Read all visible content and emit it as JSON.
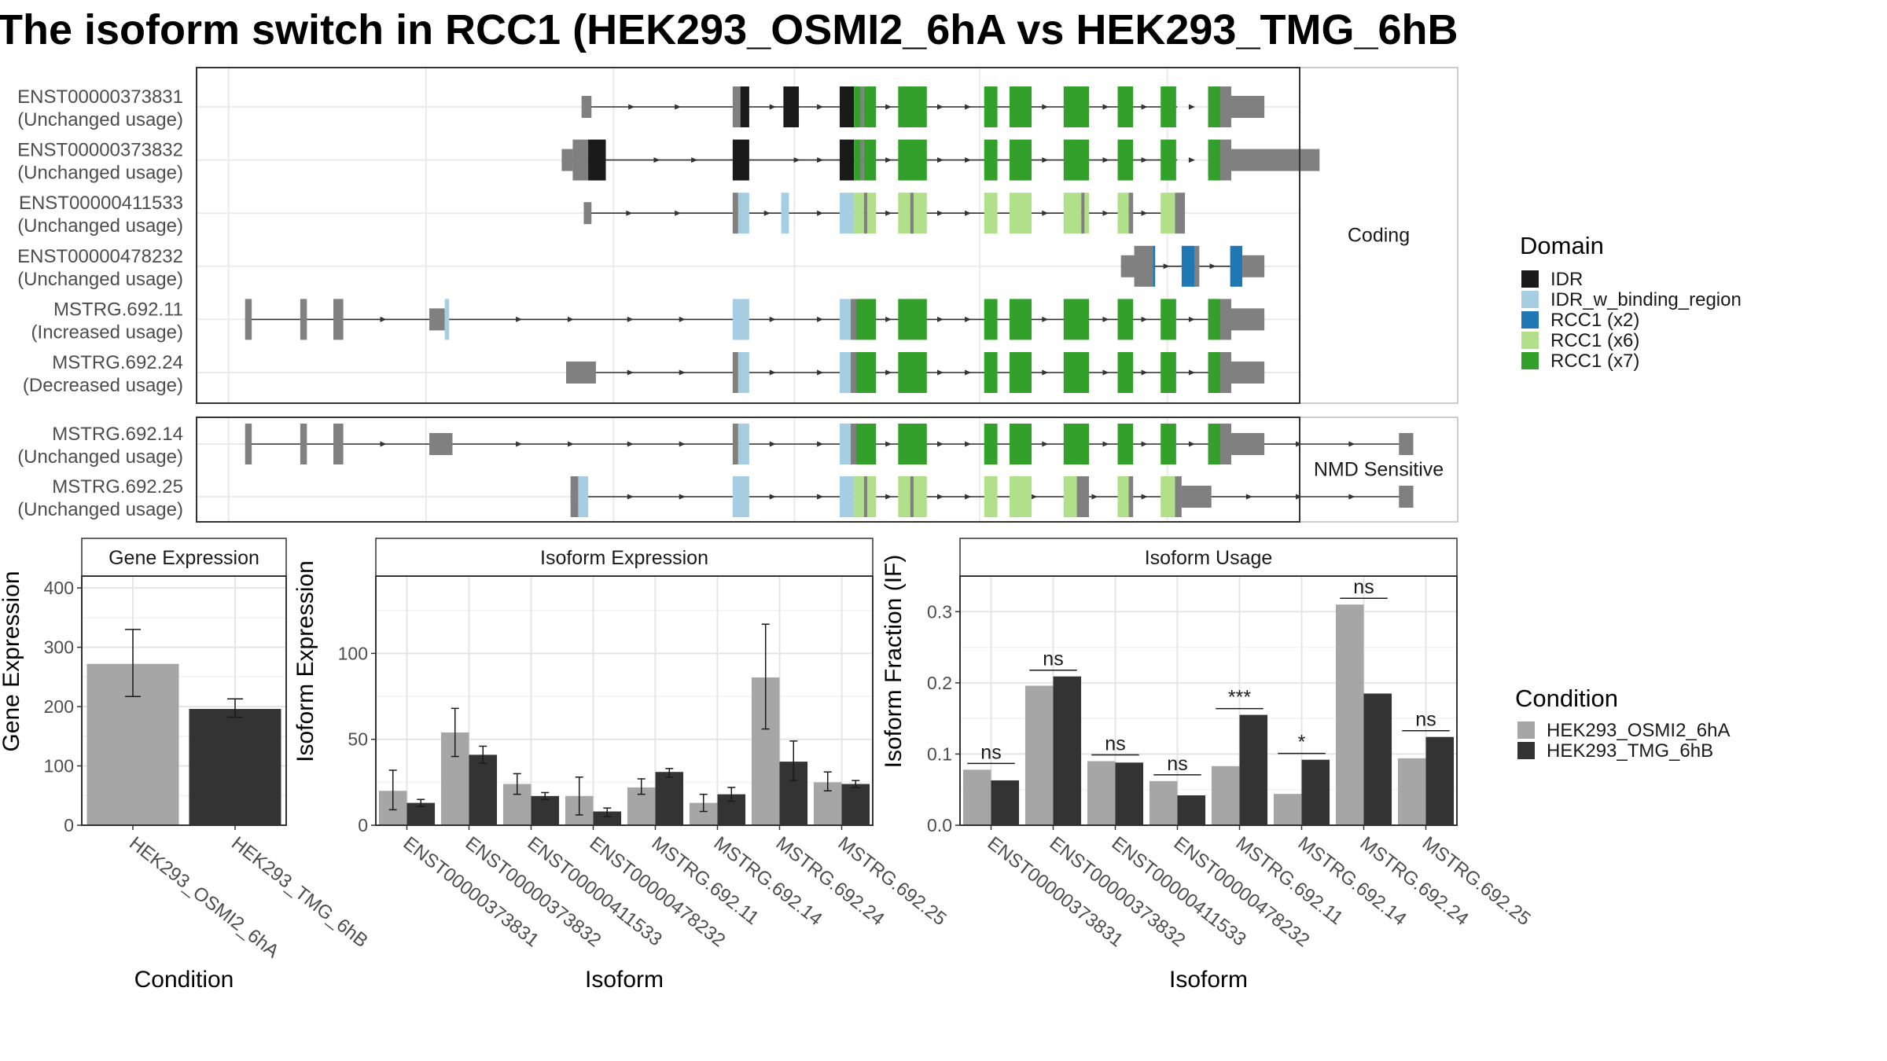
{
  "title": "The isoform switch in RCC1 (HEK293_OSMI2_6hA vs HEK293_TMG_6hB",
  "domain_colors": {
    "IDR": "#1a1a1a",
    "IDR_w_binding_region": "#a6cee3",
    "RCC1 (x2)": "#1f78b4",
    "RCC1 (x6)": "#b2df8a",
    "RCC1 (x7)": "#33a02c",
    "exon": "#808080"
  },
  "condition_colors": {
    "HEK293_OSMI2_6hA": "#a6a6a6",
    "HEK293_TMG_6hB": "#333333"
  },
  "facets": [
    "Coding",
    "NMD Sensitive"
  ],
  "domain_legend": {
    "title": "Domain",
    "items": [
      "IDR",
      "IDR_w_binding_region",
      "RCC1 (x2)",
      "RCC1 (x6)",
      "RCC1 (x7)"
    ]
  },
  "condition_legend": {
    "title": "Condition",
    "items": [
      "HEK293_OSMI2_6hA",
      "HEK293_TMG_6hB"
    ]
  },
  "chart_data": [
    {
      "type": "bar",
      "panel": "Gene Expression",
      "xlabel": "Condition",
      "ylabel": "Gene Expression",
      "ylim": [
        0,
        420
      ],
      "yticks": [
        0,
        100,
        200,
        300,
        400
      ],
      "grid": true,
      "categories": [
        "HEK293_OSMI2_6hA",
        "HEK293_TMG_6hB"
      ],
      "values": [
        272,
        196
      ],
      "err_low": [
        217,
        182
      ],
      "err_high": [
        330,
        213
      ]
    },
    {
      "type": "bar",
      "panel": "Isoform Expression",
      "xlabel": "Isoform",
      "ylabel": "Isoform Expression",
      "ylim": [
        0,
        145
      ],
      "yticks": [
        0,
        50,
        100
      ],
      "grid": true,
      "categories": [
        "ENST00000373831",
        "ENST00000373832",
        "ENST00000411533",
        "ENST00000478232",
        "MSTRG.692.11",
        "MSTRG.692.14",
        "MSTRG.692.24",
        "MSTRG.692.25"
      ],
      "series": [
        {
          "name": "HEK293_OSMI2_6hA",
          "values": [
            20,
            54,
            24,
            17,
            22,
            13,
            86,
            25
          ],
          "err_low": [
            9,
            40,
            18,
            6,
            18,
            8,
            56,
            20
          ],
          "err_high": [
            32,
            68,
            30,
            28,
            27,
            18,
            117,
            31
          ]
        },
        {
          "name": "HEK293_TMG_6hB",
          "values": [
            13,
            41,
            17,
            8,
            31,
            18,
            37,
            24
          ],
          "err_low": [
            11,
            36,
            15,
            5,
            28,
            14,
            26,
            22
          ],
          "err_high": [
            15,
            46,
            19,
            10,
            33,
            22,
            49,
            26
          ]
        }
      ]
    },
    {
      "type": "bar",
      "panel": "Isoform Usage",
      "xlabel": "Isoform",
      "ylabel": "Isoform Fraction (IF)",
      "ylim": [
        0,
        0.35
      ],
      "yticks": [
        0.0,
        0.1,
        0.2,
        0.3
      ],
      "grid": true,
      "categories": [
        "ENST00000373831",
        "ENST00000373832",
        "ENST00000411533",
        "ENST00000478232",
        "MSTRG.692.11",
        "MSTRG.692.14",
        "MSTRG.692.24",
        "MSTRG.692.25"
      ],
      "series": [
        {
          "name": "HEK293_OSMI2_6hA",
          "values": [
            0.078,
            0.196,
            0.09,
            0.062,
            0.083,
            0.044,
            0.31,
            0.094
          ]
        },
        {
          "name": "HEK293_TMG_6hB",
          "values": [
            0.063,
            0.209,
            0.088,
            0.042,
            0.155,
            0.092,
            0.185,
            0.124
          ]
        }
      ],
      "significance": [
        "ns",
        "ns",
        "ns",
        "ns",
        "***",
        "*",
        "ns",
        "ns"
      ]
    }
  ],
  "transcripts": [
    {
      "id": "ENST00000373831",
      "usage": "(Unchanged usage)",
      "group": 0,
      "line": [
        0.349,
        0.889
      ],
      "segs": [
        [
          0.349,
          0.358,
          "exon",
          "thin"
        ],
        [
          0.486,
          0.493,
          "exon",
          "full"
        ],
        [
          0.493,
          0.501,
          "IDR",
          "full"
        ],
        [
          0.532,
          0.546,
          "IDR",
          "full"
        ],
        [
          0.583,
          0.596,
          "IDR",
          "full"
        ],
        [
          0.596,
          0.602,
          "RCC1 (x7)",
          "full"
        ],
        [
          0.602,
          0.605,
          "exon",
          "full"
        ],
        [
          0.605,
          0.616,
          "RCC1 (x7)",
          "full"
        ],
        [
          0.636,
          0.662,
          "RCC1 (x7)",
          "full"
        ],
        [
          0.714,
          0.726,
          "RCC1 (x7)",
          "full"
        ],
        [
          0.737,
          0.757,
          "RCC1 (x7)",
          "full"
        ],
        [
          0.786,
          0.809,
          "RCC1 (x7)",
          "full"
        ],
        [
          0.835,
          0.849,
          "RCC1 (x7)",
          "full"
        ],
        [
          0.874,
          0.888,
          "RCC1 (x7)",
          "full"
        ],
        [
          0.917,
          0.928,
          "RCC1 (x7)",
          "full"
        ],
        [
          0.928,
          0.938,
          "exon",
          "full"
        ],
        [
          0.938,
          0.968,
          "exon",
          "thin"
        ]
      ],
      "arrows": [
        0.395,
        0.437,
        0.523,
        0.566,
        0.628,
        0.675,
        0.7,
        0.77,
        0.825,
        0.86,
        0.903
      ]
    },
    {
      "id": "ENST00000373832",
      "usage": "(Unchanged usage)",
      "group": 0,
      "line": [
        0.331,
        0.889
      ],
      "segs": [
        [
          0.331,
          0.341,
          "exon",
          "thin"
        ],
        [
          0.341,
          0.355,
          "exon",
          "full"
        ],
        [
          0.355,
          0.371,
          "IDR",
          "full"
        ],
        [
          0.486,
          0.501,
          "IDR",
          "full"
        ],
        [
          0.583,
          0.596,
          "IDR",
          "full"
        ],
        [
          0.596,
          0.602,
          "RCC1 (x7)",
          "full"
        ],
        [
          0.602,
          0.605,
          "exon",
          "full"
        ],
        [
          0.605,
          0.616,
          "RCC1 (x7)",
          "full"
        ],
        [
          0.636,
          0.662,
          "RCC1 (x7)",
          "full"
        ],
        [
          0.714,
          0.726,
          "RCC1 (x7)",
          "full"
        ],
        [
          0.737,
          0.757,
          "RCC1 (x7)",
          "full"
        ],
        [
          0.786,
          0.809,
          "RCC1 (x7)",
          "full"
        ],
        [
          0.835,
          0.849,
          "RCC1 (x7)",
          "full"
        ],
        [
          0.874,
          0.888,
          "RCC1 (x7)",
          "full"
        ],
        [
          0.917,
          0.928,
          "RCC1 (x7)",
          "full"
        ],
        [
          0.928,
          0.938,
          "exon",
          "full"
        ],
        [
          0.938,
          1.018,
          "exon",
          "thin"
        ]
      ],
      "arrows": [
        0.418,
        0.452,
        0.545,
        0.566,
        0.628,
        0.675,
        0.7,
        0.77,
        0.825,
        0.86,
        0.903
      ]
    },
    {
      "id": "ENST00000411533",
      "usage": "(Unchanged usage)",
      "group": 0,
      "line": [
        0.351,
        0.896
      ],
      "segs": [
        [
          0.351,
          0.358,
          "exon",
          "thin"
        ],
        [
          0.486,
          0.491,
          "exon",
          "full"
        ],
        [
          0.491,
          0.501,
          "IDR_w_binding_region",
          "full"
        ],
        [
          0.53,
          0.537,
          "IDR_w_binding_region",
          "full"
        ],
        [
          0.583,
          0.596,
          "IDR_w_binding_region",
          "full"
        ],
        [
          0.596,
          0.605,
          "RCC1 (x6)",
          "full"
        ],
        [
          0.605,
          0.608,
          "exon",
          "full"
        ],
        [
          0.608,
          0.616,
          "RCC1 (x6)",
          "full"
        ],
        [
          0.636,
          0.647,
          "RCC1 (x6)",
          "full"
        ],
        [
          0.647,
          0.65,
          "exon",
          "full"
        ],
        [
          0.65,
          0.662,
          "RCC1 (x6)",
          "full"
        ],
        [
          0.714,
          0.726,
          "RCC1 (x6)",
          "full"
        ],
        [
          0.737,
          0.757,
          "RCC1 (x6)",
          "full"
        ],
        [
          0.786,
          0.802,
          "RCC1 (x6)",
          "full"
        ],
        [
          0.802,
          0.805,
          "exon",
          "full"
        ],
        [
          0.805,
          0.809,
          "RCC1 (x6)",
          "full"
        ],
        [
          0.835,
          0.845,
          "RCC1 (x6)",
          "full"
        ],
        [
          0.845,
          0.849,
          "exon",
          "full"
        ],
        [
          0.874,
          0.887,
          "RCC1 (x6)",
          "full"
        ],
        [
          0.887,
          0.896,
          "exon",
          "full"
        ]
      ],
      "arrows": [
        0.393,
        0.437,
        0.518,
        0.566,
        0.628,
        0.675,
        0.7,
        0.77,
        0.825,
        0.86
      ]
    },
    {
      "id": "ENST00000478232",
      "usage": "(Unchanged usage)",
      "group": 0,
      "line": [
        0.838,
        0.968
      ],
      "segs": [
        [
          0.838,
          0.85,
          "exon",
          "thin"
        ],
        [
          0.85,
          0.867,
          "exon",
          "full"
        ],
        [
          0.867,
          0.869,
          "RCC1 (x2)",
          "full"
        ],
        [
          0.893,
          0.905,
          "RCC1 (x2)",
          "full"
        ],
        [
          0.905,
          0.909,
          "exon",
          "full"
        ],
        [
          0.937,
          0.948,
          "RCC1 (x2)",
          "full"
        ],
        [
          0.948,
          0.968,
          "exon",
          "thin"
        ]
      ],
      "arrows": [
        0.88,
        0.922
      ]
    },
    {
      "id": "MSTRG.692.11",
      "usage": "(Increased usage)",
      "group": 0,
      "line": [
        0.044,
        0.968
      ],
      "segs": [
        [
          0.044,
          0.05,
          "exon",
          "full"
        ],
        [
          0.094,
          0.1,
          "exon",
          "full"
        ],
        [
          0.124,
          0.133,
          "exon",
          "full"
        ],
        [
          0.211,
          0.225,
          "exon",
          "thin"
        ],
        [
          0.225,
          0.229,
          "IDR_w_binding_region",
          "full"
        ],
        [
          0.486,
          0.501,
          "IDR_w_binding_region",
          "full"
        ],
        [
          0.583,
          0.593,
          "IDR_w_binding_region",
          "full"
        ],
        [
          0.593,
          0.598,
          "exon",
          "full"
        ],
        [
          0.598,
          0.616,
          "RCC1 (x7)",
          "full"
        ],
        [
          0.636,
          0.662,
          "RCC1 (x7)",
          "full"
        ],
        [
          0.714,
          0.726,
          "RCC1 (x7)",
          "full"
        ],
        [
          0.737,
          0.757,
          "RCC1 (x7)",
          "full"
        ],
        [
          0.786,
          0.809,
          "RCC1 (x7)",
          "full"
        ],
        [
          0.835,
          0.849,
          "RCC1 (x7)",
          "full"
        ],
        [
          0.874,
          0.888,
          "RCC1 (x7)",
          "full"
        ],
        [
          0.917,
          0.928,
          "RCC1 (x7)",
          "full"
        ],
        [
          0.928,
          0.938,
          "exon",
          "full"
        ],
        [
          0.938,
          0.968,
          "exon",
          "thin"
        ]
      ],
      "arrows": [
        0.17,
        0.293,
        0.34,
        0.394,
        0.441,
        0.523,
        0.566,
        0.628,
        0.675,
        0.7,
        0.77,
        0.825,
        0.86,
        0.903
      ]
    },
    {
      "id": "MSTRG.692.24",
      "usage": "(Decreased usage)",
      "group": 0,
      "line": [
        0.335,
        0.968
      ],
      "segs": [
        [
          0.335,
          0.362,
          "exon",
          "thin"
        ],
        [
          0.486,
          0.491,
          "exon",
          "full"
        ],
        [
          0.491,
          0.501,
          "IDR_w_binding_region",
          "full"
        ],
        [
          0.583,
          0.593,
          "IDR_w_binding_region",
          "full"
        ],
        [
          0.593,
          0.598,
          "exon",
          "full"
        ],
        [
          0.598,
          0.616,
          "RCC1 (x7)",
          "full"
        ],
        [
          0.636,
          0.662,
          "RCC1 (x7)",
          "full"
        ],
        [
          0.714,
          0.726,
          "RCC1 (x7)",
          "full"
        ],
        [
          0.737,
          0.757,
          "RCC1 (x7)",
          "full"
        ],
        [
          0.786,
          0.809,
          "RCC1 (x7)",
          "full"
        ],
        [
          0.835,
          0.849,
          "RCC1 (x7)",
          "full"
        ],
        [
          0.874,
          0.888,
          "RCC1 (x7)",
          "full"
        ],
        [
          0.917,
          0.928,
          "RCC1 (x7)",
          "full"
        ],
        [
          0.928,
          0.938,
          "exon",
          "full"
        ],
        [
          0.938,
          0.968,
          "exon",
          "thin"
        ]
      ],
      "arrows": [
        0.394,
        0.441,
        0.523,
        0.566,
        0.628,
        0.675,
        0.7,
        0.77,
        0.825,
        0.86,
        0.903
      ]
    },
    {
      "id": "MSTRG.692.14",
      "usage": "(Unchanged usage)",
      "group": 1,
      "line": [
        0.044,
        1.103
      ],
      "segs": [
        [
          0.044,
          0.05,
          "exon",
          "full"
        ],
        [
          0.094,
          0.1,
          "exon",
          "full"
        ],
        [
          0.124,
          0.133,
          "exon",
          "full"
        ],
        [
          0.211,
          0.232,
          "exon",
          "thin"
        ],
        [
          0.486,
          0.491,
          "exon",
          "full"
        ],
        [
          0.491,
          0.501,
          "IDR_w_binding_region",
          "full"
        ],
        [
          0.583,
          0.593,
          "IDR_w_binding_region",
          "full"
        ],
        [
          0.593,
          0.598,
          "exon",
          "full"
        ],
        [
          0.598,
          0.616,
          "RCC1 (x7)",
          "full"
        ],
        [
          0.636,
          0.662,
          "RCC1 (x7)",
          "full"
        ],
        [
          0.714,
          0.726,
          "RCC1 (x7)",
          "full"
        ],
        [
          0.737,
          0.757,
          "RCC1 (x7)",
          "full"
        ],
        [
          0.786,
          0.809,
          "RCC1 (x7)",
          "full"
        ],
        [
          0.835,
          0.849,
          "RCC1 (x7)",
          "full"
        ],
        [
          0.874,
          0.888,
          "RCC1 (x7)",
          "full"
        ],
        [
          0.917,
          0.928,
          "RCC1 (x7)",
          "full"
        ],
        [
          0.928,
          0.938,
          "exon",
          "full"
        ],
        [
          0.938,
          0.968,
          "exon",
          "thin"
        ],
        [
          1.09,
          1.103,
          "exon",
          "thin"
        ]
      ],
      "arrows": [
        0.17,
        0.293,
        0.34,
        0.394,
        0.441,
        0.523,
        0.566,
        0.628,
        0.675,
        0.7,
        0.77,
        0.825,
        0.86,
        0.903,
        1.0,
        1.048
      ]
    },
    {
      "id": "MSTRG.692.25",
      "usage": "(Unchanged usage)",
      "group": 1,
      "line": [
        0.339,
        1.103
      ],
      "segs": [
        [
          0.339,
          0.346,
          "exon",
          "full"
        ],
        [
          0.346,
          0.355,
          "IDR_w_binding_region",
          "full"
        ],
        [
          0.486,
          0.501,
          "IDR_w_binding_region",
          "full"
        ],
        [
          0.583,
          0.596,
          "IDR_w_binding_region",
          "full"
        ],
        [
          0.596,
          0.605,
          "RCC1 (x6)",
          "full"
        ],
        [
          0.605,
          0.608,
          "exon",
          "full"
        ],
        [
          0.608,
          0.616,
          "RCC1 (x6)",
          "full"
        ],
        [
          0.636,
          0.647,
          "RCC1 (x6)",
          "full"
        ],
        [
          0.647,
          0.65,
          "exon",
          "full"
        ],
        [
          0.65,
          0.662,
          "RCC1 (x6)",
          "full"
        ],
        [
          0.714,
          0.726,
          "RCC1 (x6)",
          "full"
        ],
        [
          0.737,
          0.757,
          "RCC1 (x6)",
          "full"
        ],
        [
          0.786,
          0.798,
          "RCC1 (x6)",
          "full"
        ],
        [
          0.798,
          0.809,
          "exon",
          "full"
        ],
        [
          0.835,
          0.845,
          "RCC1 (x6)",
          "full"
        ],
        [
          0.845,
          0.849,
          "exon",
          "full"
        ],
        [
          0.874,
          0.887,
          "RCC1 (x6)",
          "full"
        ],
        [
          0.887,
          0.893,
          "exon",
          "full"
        ],
        [
          0.893,
          0.92,
          "exon",
          "thin"
        ],
        [
          1.09,
          1.103,
          "exon",
          "thin"
        ]
      ],
      "arrows": [
        0.394,
        0.441,
        0.523,
        0.566,
        0.628,
        0.675,
        0.7,
        0.76,
        0.815,
        0.86,
        0.955,
        1.0,
        1.048
      ]
    }
  ]
}
